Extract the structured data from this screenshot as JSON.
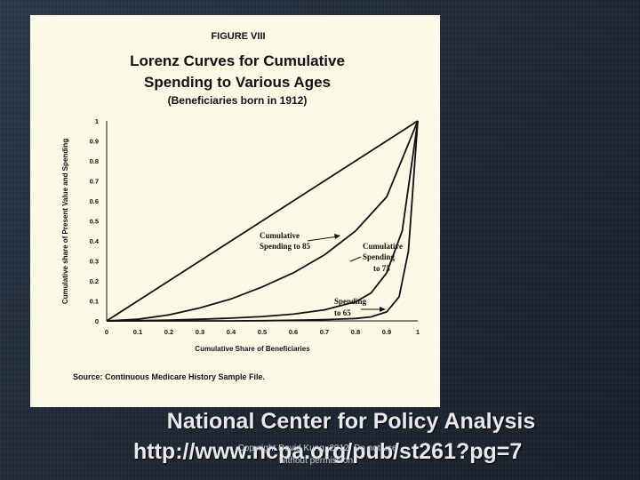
{
  "figure": {
    "label": "FIGURE VIII",
    "title_line1": "Lorenz Curves for Cumulative",
    "title_line2": "Spending to Various Ages",
    "subtitle": "(Beneficiaries born in 1912)",
    "source": "Source: Continuous Medicare History Sample File."
  },
  "chart_data": {
    "type": "line",
    "xlabel": "Cumulative Share of Beneficiaries",
    "ylabel": "Cumulative share of Present Value and Spending",
    "xlim": [
      0,
      1
    ],
    "ylim": [
      0,
      1
    ],
    "x_ticks": [
      "0",
      "0.1",
      "0.2",
      "0.3",
      "0.4",
      "0.5",
      "0.6",
      "0.7",
      "0.8",
      "0.9",
      "1"
    ],
    "y_ticks": [
      "0",
      "0.1",
      "0.2",
      "0.3",
      "0.4",
      "0.5",
      "0.6",
      "0.7",
      "0.8",
      "0.9",
      "1"
    ],
    "grid": false,
    "legend": "none",
    "series": [
      {
        "x": [
          0,
          0.1,
          0.2,
          0.3,
          0.4,
          0.5,
          0.6,
          0.7,
          0.8,
          0.9,
          1.0
        ],
        "y": [
          0,
          0.1,
          0.2,
          0.3,
          0.4,
          0.5,
          0.6,
          0.7,
          0.8,
          0.9,
          1.0
        ]
      },
      {
        "x": [
          0,
          0.1,
          0.2,
          0.3,
          0.4,
          0.5,
          0.6,
          0.7,
          0.8,
          0.9,
          1.0
        ],
        "y": [
          0,
          0.008,
          0.03,
          0.065,
          0.11,
          0.17,
          0.24,
          0.33,
          0.45,
          0.62,
          1.0
        ]
      },
      {
        "x": [
          0,
          0.1,
          0.2,
          0.3,
          0.4,
          0.5,
          0.6,
          0.7,
          0.8,
          0.85,
          0.9,
          0.95,
          1.0
        ],
        "y": [
          0,
          0.001,
          0.004,
          0.008,
          0.014,
          0.022,
          0.034,
          0.055,
          0.095,
          0.14,
          0.24,
          0.45,
          1.0
        ]
      },
      {
        "x": [
          0,
          0.1,
          0.2,
          0.3,
          0.4,
          0.5,
          0.6,
          0.7,
          0.8,
          0.85,
          0.9,
          0.94,
          0.97,
          1.0
        ],
        "y": [
          0,
          0,
          0,
          0,
          0,
          0.001,
          0.003,
          0.006,
          0.012,
          0.02,
          0.045,
          0.12,
          0.35,
          1.0
        ]
      }
    ],
    "annotations": [
      {
        "line1": "Cumulative",
        "line2": "Spending to 85"
      },
      {
        "line1": "Cumulative",
        "line2": "Spending",
        "line3": "to 75"
      },
      {
        "line1": "Spending",
        "line2": "to 65"
      }
    ]
  },
  "caption": {
    "org": "National Center for Policy Analysis",
    "url": "http://www.ncpa.org/pub/st261?pg=7",
    "copyright_line1": "Copyright David Kung, 2012. Do not use",
    "copyright_line2": "without permission."
  }
}
